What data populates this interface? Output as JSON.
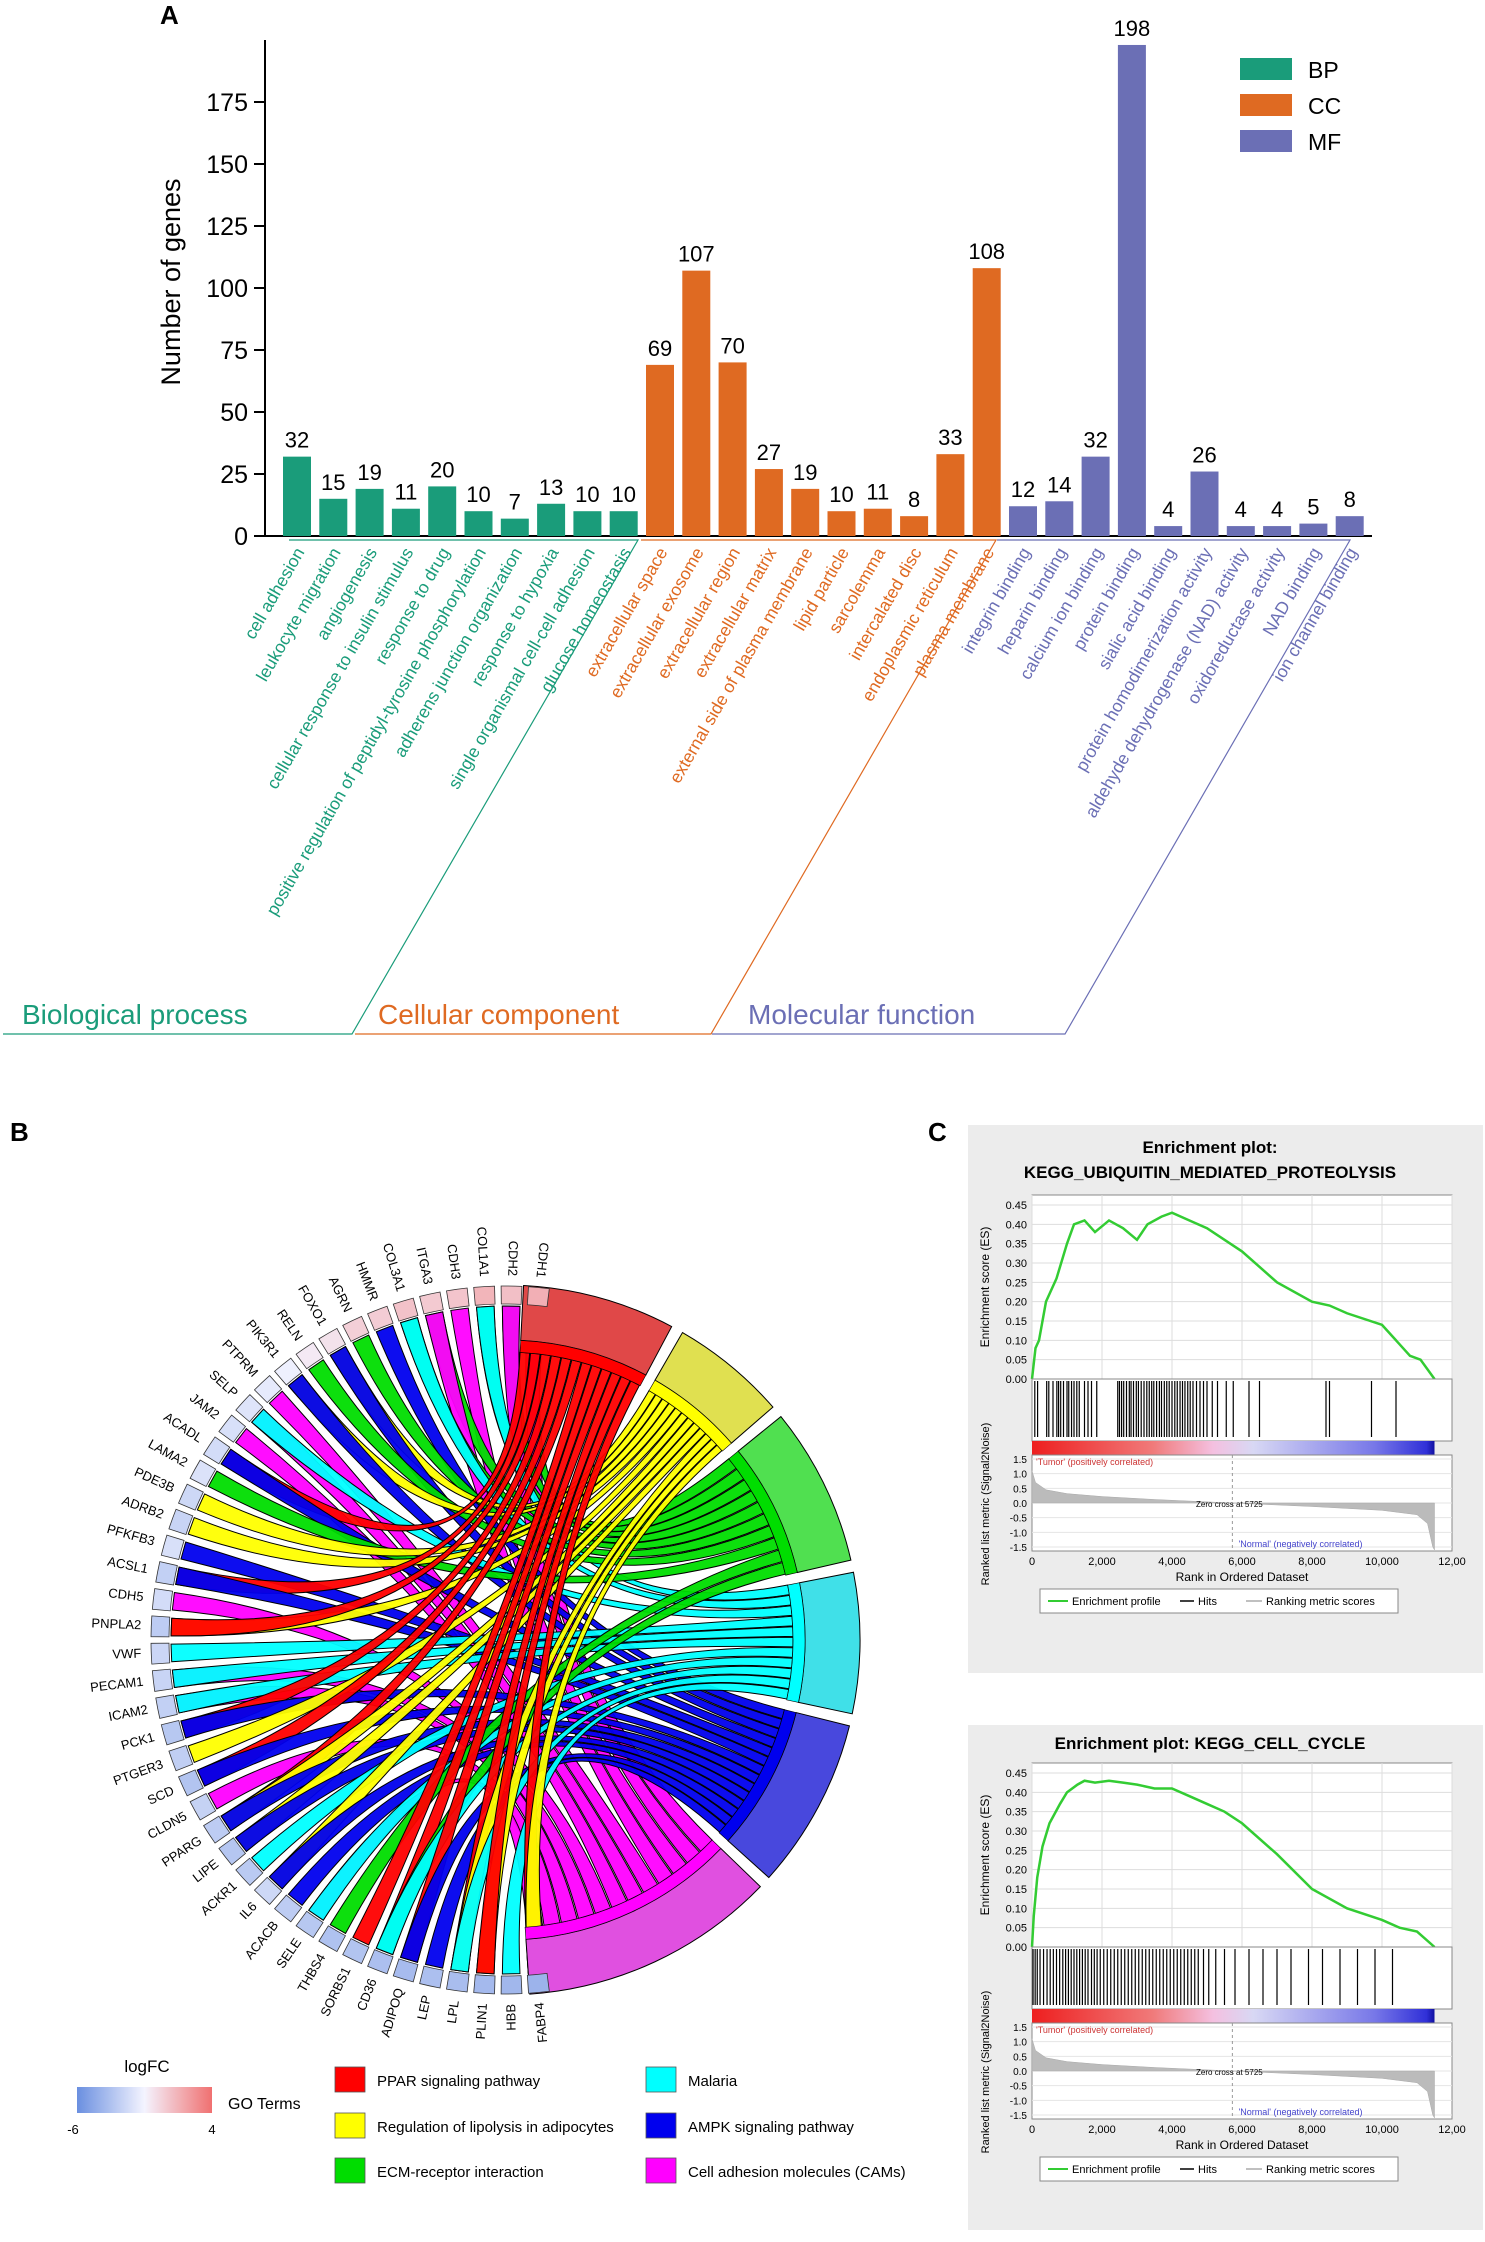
{
  "panels": {
    "a": "A",
    "b": "B",
    "c": "C"
  },
  "colors": {
    "bp": "#1a9c7a",
    "cc": "#df6a22",
    "mf": "#6b6fb5",
    "gsea_curve": "#33cc33",
    "ppar": "#ff0000",
    "lipolysis": "#ffff00",
    "ecm": "#00dd00",
    "malaria": "#00ffff",
    "ampk": "#0000ee",
    "cams": "#ff00ff"
  },
  "chart_data": [
    {
      "type": "bar",
      "title": "",
      "ylabel": "Number of genes",
      "ylim": [
        0,
        200
      ],
      "yticks": [
        "0",
        "25",
        "50",
        "75",
        "100",
        "125",
        "150",
        "175"
      ],
      "legend": [
        {
          "label": "BP",
          "color": "#1a9c7a"
        },
        {
          "label": "CC",
          "color": "#df6a22"
        },
        {
          "label": "MF",
          "color": "#6b6fb5"
        }
      ],
      "groups": [
        {
          "name": "Biological process",
          "key": "bp",
          "color": "#1a9c7a",
          "categories": [
            "cell adhesion",
            "leukocyte migration",
            "angiogenesis",
            "cellular response to insulin stimulus",
            "response to drug",
            "positive regulation of peptidyl-tyrosine phosphorylation",
            "adherens junction organization",
            "response to hypoxia",
            "single organismal cell-cell adhesion",
            "glucose homeostasis"
          ],
          "values": [
            32,
            15,
            19,
            11,
            20,
            10,
            7,
            13,
            10,
            10
          ]
        },
        {
          "name": "Cellular component",
          "key": "cc",
          "color": "#df6a22",
          "categories": [
            "extracellular space",
            "extracellular exosome",
            "extracellular region",
            "extracellular matrix",
            "external side of plasma membrane",
            "lipid particle",
            "sarcolemma",
            "intercalated disc",
            "endoplasmic reticulum",
            "plasma membrane"
          ],
          "values": [
            69,
            107,
            70,
            27,
            19,
            10,
            11,
            8,
            33,
            108
          ]
        },
        {
          "name": "Molecular function",
          "key": "mf",
          "color": "#6b6fb5",
          "categories": [
            "integrin binding",
            "heparin binding",
            "calcium ion binding",
            "protein binding",
            "sialic acid binding",
            "protein homodimerization activity",
            "aldehyde dehydrogenase (NAD) activity",
            "oxidoreductase activity",
            "NAD binding",
            "ion channel binding"
          ],
          "values": [
            12,
            14,
            32,
            198,
            4,
            26,
            4,
            4,
            5,
            8
          ]
        }
      ]
    },
    {
      "type": "other",
      "chart": "chord",
      "genes": [
        "CDH1",
        "CDH2",
        "COL1A1",
        "CDH3",
        "ITGA3",
        "COL3A1",
        "HMMR",
        "AGRN",
        "FOXO1",
        "RELN",
        "PIK3R1",
        "PTPRM",
        "SELP",
        "JAM2",
        "ACADL",
        "LAMA2",
        "PDE3B",
        "ADRB2",
        "PFKFB3",
        "ACSL1",
        "CDH5",
        "PNPLA2",
        "VWF",
        "PECAM1",
        "ICAM2",
        "PCK1",
        "PTGER3",
        "SCD",
        "CLDN5",
        "PPARG",
        "LIPE",
        "ACKR1",
        "IL6",
        "ACACB",
        "SELE",
        "THBS4",
        "SORBS1",
        "CD36",
        "ADIPOQ",
        "LEP",
        "LPL",
        "PLIN1",
        "HBB",
        "FABP4"
      ],
      "logfc_estimate": [
        1.6,
        1.0,
        1.4,
        0.8,
        0.6,
        0.9,
        0.5,
        0.4,
        -0.3,
        -0.6,
        -1.2,
        -1.5,
        -1.8,
        -2.0,
        -2.2,
        -1.9,
        -2.4,
        -2.6,
        -2.0,
        -2.8,
        -2.2,
        -3.0,
        -2.5,
        -2.6,
        -2.8,
        -3.2,
        -2.9,
        -3.4,
        -2.7,
        -3.0,
        -3.3,
        -3.1,
        -2.4,
        -3.0,
        -3.2,
        -3.5,
        -3.4,
        -3.6,
        -3.8,
        -3.6,
        -3.7,
        -3.9,
        -4.0,
        -4.2
      ],
      "legend_logfc": {
        "title": "logFC",
        "min_label": "-6",
        "max_label": "4"
      },
      "legend_terms_title": "GO Terms",
      "terms": [
        {
          "name": "PPAR signaling pathway",
          "color": "#ff0000",
          "arc_color": "#e04848"
        },
        {
          "name": "Regulation of lipolysis in adipocytes",
          "color": "#ffff00",
          "arc_color": "#e0e050"
        },
        {
          "name": "ECM-receptor interaction",
          "color": "#00dd00",
          "arc_color": "#50e050"
        },
        {
          "name": "Malaria",
          "color": "#00ffff",
          "arc_color": "#40e0e8"
        },
        {
          "name": "AMPK signaling pathway",
          "color": "#0000ee",
          "arc_color": "#4848dd"
        },
        {
          "name": "Cell adhesion molecules (CAMs)",
          "color": "#ff00ff",
          "arc_color": "#e050e0"
        }
      ]
    },
    {
      "type": "line",
      "title": "Enrichment plot:",
      "subtitle": "KEGG_UBIQUITIN_MEDIATED_PROTEOLYSIS",
      "ylabel": "Enrichment score (ES)",
      "ylabel2": "Ranked list metric (Signal2Noise)",
      "xlabel": "Rank in Ordered Dataset",
      "x": [
        0,
        100,
        200,
        400,
        700,
        1000,
        1200,
        1500,
        1800,
        2200,
        2600,
        3000,
        3300,
        3700,
        4000,
        4500,
        5000,
        6000,
        7000,
        8000,
        8500,
        9000,
        10000,
        10800,
        11100,
        11500
      ],
      "y": [
        0.0,
        0.08,
        0.1,
        0.2,
        0.26,
        0.35,
        0.4,
        0.41,
        0.38,
        0.41,
        0.39,
        0.36,
        0.4,
        0.42,
        0.43,
        0.41,
        0.39,
        0.33,
        0.25,
        0.2,
        0.19,
        0.17,
        0.14,
        0.06,
        0.05,
        0.0
      ],
      "es_ticks": [
        "0.45",
        "0.40",
        "0.35",
        "0.30",
        "0.25",
        "0.20",
        "0.15",
        "0.10",
        "0.05",
        "0.00"
      ],
      "metric_ticks": [
        "1.5",
        "1.0",
        "0.5",
        "0.0",
        "-0.5",
        "-1.0",
        "-1.5"
      ],
      "xticks": [
        "0",
        "2,000",
        "4,000",
        "6,000",
        "8,000",
        "10,000",
        "12,00"
      ],
      "hits": [
        80,
        160,
        420,
        480,
        600,
        710,
        760,
        820,
        900,
        1000,
        1050,
        1130,
        1200,
        1280,
        1350,
        1500,
        1600,
        1700,
        1850,
        2450,
        2500,
        2560,
        2620,
        2700,
        2780,
        2830,
        2900,
        2980,
        3040,
        3120,
        3200,
        3280,
        3350,
        3420,
        3480,
        3560,
        3640,
        3700,
        3780,
        3850,
        3920,
        4000,
        4080,
        4150,
        4230,
        4300,
        4370,
        4450,
        4520,
        4600,
        4700,
        4800,
        4900,
        5000,
        5150,
        5300,
        5550,
        5750,
        6200,
        6500,
        8400,
        8500,
        9700,
        10400
      ],
      "tumor_label": "'Tumor' (positively correlated)",
      "normal_label": "'Normal' (negatively correlated)",
      "zero_cross": "Zero cross at 5725",
      "legend": [
        "Enrichment profile",
        "Hits",
        "Ranking metric scores"
      ]
    },
    {
      "type": "line",
      "title": "Enrichment plot: KEGG_CELL_CYCLE",
      "ylabel": "Enrichment score (ES)",
      "ylabel2": "Ranked list metric (Signal2Noise)",
      "xlabel": "Rank in Ordered Dataset",
      "x": [
        0,
        50,
        150,
        300,
        500,
        800,
        1000,
        1300,
        1500,
        1800,
        2200,
        2600,
        3000,
        3500,
        4000,
        4500,
        5000,
        5500,
        6000,
        7000,
        8000,
        9000,
        10000,
        10500,
        11000,
        11500
      ],
      "y": [
        0.0,
        0.08,
        0.18,
        0.26,
        0.32,
        0.37,
        0.4,
        0.42,
        0.43,
        0.425,
        0.43,
        0.425,
        0.42,
        0.41,
        0.41,
        0.39,
        0.37,
        0.35,
        0.32,
        0.24,
        0.15,
        0.1,
        0.07,
        0.05,
        0.04,
        0.0
      ],
      "es_ticks": [
        "0.45",
        "0.40",
        "0.35",
        "0.30",
        "0.25",
        "0.20",
        "0.15",
        "0.10",
        "0.05",
        "0.00"
      ],
      "metric_ticks": [
        "1.5",
        "1.0",
        "0.5",
        "0.0",
        "-0.5",
        "-1.0",
        "-1.5"
      ],
      "xticks": [
        "0",
        "2,000",
        "4,000",
        "6,000",
        "8,000",
        "10,000",
        "12,00"
      ],
      "hits": [
        30,
        90,
        150,
        230,
        330,
        430,
        520,
        610,
        700,
        790,
        880,
        960,
        1040,
        1120,
        1200,
        1280,
        1360,
        1440,
        1520,
        1600,
        1700,
        1780,
        1860,
        1950,
        2050,
        2150,
        2250,
        2350,
        2450,
        2550,
        2650,
        2750,
        2850,
        2950,
        3050,
        3150,
        3250,
        3350,
        3450,
        3550,
        3650,
        3750,
        3850,
        3950,
        4050,
        4150,
        4250,
        4350,
        4450,
        4550,
        4650,
        4750,
        4900,
        5050,
        5250,
        5500,
        5800,
        6200,
        6600,
        7000,
        7400,
        7900,
        8300,
        8800,
        9300,
        9800,
        10300
      ],
      "tumor_label": "'Tumor' (positively correlated)",
      "normal_label": "'Normal' (negatively correlated)",
      "zero_cross": "Zero cross at 5725",
      "legend": [
        "Enrichment profile",
        "Hits",
        "Ranking metric scores"
      ]
    }
  ]
}
